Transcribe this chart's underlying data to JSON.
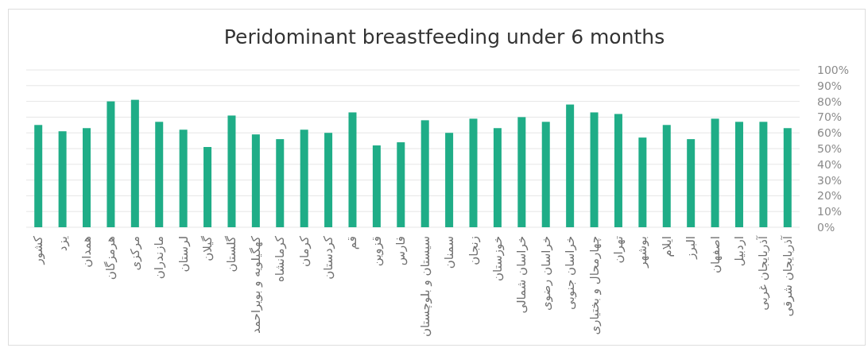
{
  "chart_data": {
    "type": "bar",
    "title": "Peridominant breastfeeding under 6 months",
    "categories": [
      "کشور",
      "یزد",
      "همدان",
      "هرمزگان",
      "مرکزی",
      "مازندران",
      "لرستان",
      "گیلان",
      "گلستان",
      "کهگیلویه و بویراحمد",
      "کرمانشاه",
      "کرمان",
      "کردستان",
      "قم",
      "قزوین",
      "فارس",
      "سیستان و بلوچستان",
      "سمنان",
      "زنجان",
      "خوزستان",
      "خراسان شمالی",
      "خراسان رضوی",
      "خراسان جنوبی",
      "چهارمحال و بختیاری",
      "تهران",
      "بوشهر",
      "ایلام",
      "البرز",
      "اصفهان",
      "اردبیل",
      "آذربایجان غربی",
      "آذربایجان شرقی"
    ],
    "values": [
      65,
      61,
      63,
      80,
      81,
      67,
      62,
      51,
      71,
      59,
      56,
      62,
      60,
      73,
      52,
      54,
      68,
      60,
      69,
      63,
      70,
      67,
      78,
      73,
      72,
      57,
      65,
      56,
      69,
      67,
      67,
      63
    ],
    "color": "#1fad87",
    "ylim": [
      0,
      100
    ],
    "yticks": [
      {
        "value": 0,
        "label": "0%"
      },
      {
        "value": 10,
        "label": "10%"
      },
      {
        "value": 20,
        "label": "20%"
      },
      {
        "value": 30,
        "label": "30%"
      },
      {
        "value": 40,
        "label": "40%"
      },
      {
        "value": 50,
        "label": "50%"
      },
      {
        "value": 60,
        "label": "60%"
      },
      {
        "value": 70,
        "label": "70%"
      },
      {
        "value": 80,
        "label": "80%"
      },
      {
        "value": 90,
        "label": "90%"
      },
      {
        "value": 100,
        "label": "100%"
      }
    ],
    "grid": "y"
  }
}
